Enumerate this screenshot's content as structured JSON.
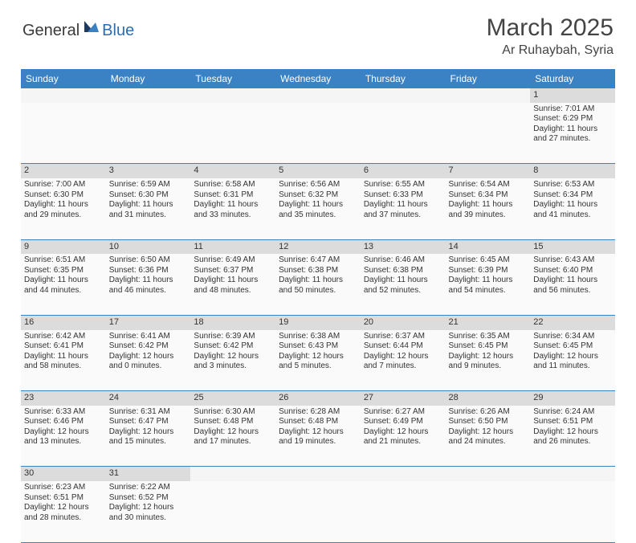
{
  "logo": {
    "general": "General",
    "blue": "Blue"
  },
  "title": "March 2025",
  "location": "Ar Ruhaybah, Syria",
  "colors": {
    "header_bg": "#3a82c4",
    "header_text": "#ffffff",
    "daynum_bg": "#dcdcdc",
    "border": "#3a82c4",
    "logo_blue": "#2a6db5"
  },
  "day_headers": [
    "Sunday",
    "Monday",
    "Tuesday",
    "Wednesday",
    "Thursday",
    "Friday",
    "Saturday"
  ],
  "weeks": [
    [
      null,
      null,
      null,
      null,
      null,
      null,
      {
        "n": "1",
        "sr": "7:01 AM",
        "ss": "6:29 PM",
        "dl": "11 hours and 27 minutes."
      }
    ],
    [
      {
        "n": "2",
        "sr": "7:00 AM",
        "ss": "6:30 PM",
        "dl": "11 hours and 29 minutes."
      },
      {
        "n": "3",
        "sr": "6:59 AM",
        "ss": "6:30 PM",
        "dl": "11 hours and 31 minutes."
      },
      {
        "n": "4",
        "sr": "6:58 AM",
        "ss": "6:31 PM",
        "dl": "11 hours and 33 minutes."
      },
      {
        "n": "5",
        "sr": "6:56 AM",
        "ss": "6:32 PM",
        "dl": "11 hours and 35 minutes."
      },
      {
        "n": "6",
        "sr": "6:55 AM",
        "ss": "6:33 PM",
        "dl": "11 hours and 37 minutes."
      },
      {
        "n": "7",
        "sr": "6:54 AM",
        "ss": "6:34 PM",
        "dl": "11 hours and 39 minutes."
      },
      {
        "n": "8",
        "sr": "6:53 AM",
        "ss": "6:34 PM",
        "dl": "11 hours and 41 minutes."
      }
    ],
    [
      {
        "n": "9",
        "sr": "6:51 AM",
        "ss": "6:35 PM",
        "dl": "11 hours and 44 minutes."
      },
      {
        "n": "10",
        "sr": "6:50 AM",
        "ss": "6:36 PM",
        "dl": "11 hours and 46 minutes."
      },
      {
        "n": "11",
        "sr": "6:49 AM",
        "ss": "6:37 PM",
        "dl": "11 hours and 48 minutes."
      },
      {
        "n": "12",
        "sr": "6:47 AM",
        "ss": "6:38 PM",
        "dl": "11 hours and 50 minutes."
      },
      {
        "n": "13",
        "sr": "6:46 AM",
        "ss": "6:38 PM",
        "dl": "11 hours and 52 minutes."
      },
      {
        "n": "14",
        "sr": "6:45 AM",
        "ss": "6:39 PM",
        "dl": "11 hours and 54 minutes."
      },
      {
        "n": "15",
        "sr": "6:43 AM",
        "ss": "6:40 PM",
        "dl": "11 hours and 56 minutes."
      }
    ],
    [
      {
        "n": "16",
        "sr": "6:42 AM",
        "ss": "6:41 PM",
        "dl": "11 hours and 58 minutes."
      },
      {
        "n": "17",
        "sr": "6:41 AM",
        "ss": "6:42 PM",
        "dl": "12 hours and 0 minutes."
      },
      {
        "n": "18",
        "sr": "6:39 AM",
        "ss": "6:42 PM",
        "dl": "12 hours and 3 minutes."
      },
      {
        "n": "19",
        "sr": "6:38 AM",
        "ss": "6:43 PM",
        "dl": "12 hours and 5 minutes."
      },
      {
        "n": "20",
        "sr": "6:37 AM",
        "ss": "6:44 PM",
        "dl": "12 hours and 7 minutes."
      },
      {
        "n": "21",
        "sr": "6:35 AM",
        "ss": "6:45 PM",
        "dl": "12 hours and 9 minutes."
      },
      {
        "n": "22",
        "sr": "6:34 AM",
        "ss": "6:45 PM",
        "dl": "12 hours and 11 minutes."
      }
    ],
    [
      {
        "n": "23",
        "sr": "6:33 AM",
        "ss": "6:46 PM",
        "dl": "12 hours and 13 minutes."
      },
      {
        "n": "24",
        "sr": "6:31 AM",
        "ss": "6:47 PM",
        "dl": "12 hours and 15 minutes."
      },
      {
        "n": "25",
        "sr": "6:30 AM",
        "ss": "6:48 PM",
        "dl": "12 hours and 17 minutes."
      },
      {
        "n": "26",
        "sr": "6:28 AM",
        "ss": "6:48 PM",
        "dl": "12 hours and 19 minutes."
      },
      {
        "n": "27",
        "sr": "6:27 AM",
        "ss": "6:49 PM",
        "dl": "12 hours and 21 minutes."
      },
      {
        "n": "28",
        "sr": "6:26 AM",
        "ss": "6:50 PM",
        "dl": "12 hours and 24 minutes."
      },
      {
        "n": "29",
        "sr": "6:24 AM",
        "ss": "6:51 PM",
        "dl": "12 hours and 26 minutes."
      }
    ],
    [
      {
        "n": "30",
        "sr": "6:23 AM",
        "ss": "6:51 PM",
        "dl": "12 hours and 28 minutes."
      },
      {
        "n": "31",
        "sr": "6:22 AM",
        "ss": "6:52 PM",
        "dl": "12 hours and 30 minutes."
      },
      null,
      null,
      null,
      null,
      null
    ]
  ],
  "labels": {
    "sunrise": "Sunrise:",
    "sunset": "Sunset:",
    "daylight": "Daylight:"
  }
}
